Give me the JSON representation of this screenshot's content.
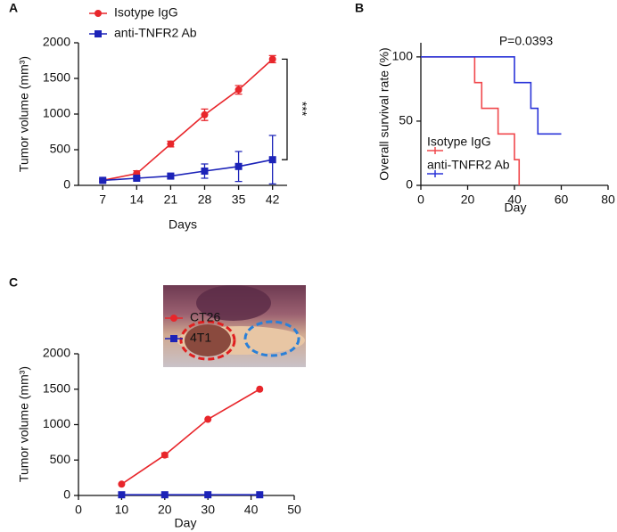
{
  "chart_data": [
    {
      "type": "line",
      "panel": "A",
      "xlabel": "Days",
      "ylabel": "Tumor volume (mm³)",
      "annotation": "***",
      "xlim": [
        2,
        45
      ],
      "xticks": [
        7,
        14,
        21,
        28,
        35,
        42
      ],
      "ylim": [
        0,
        2000
      ],
      "yticks": [
        0,
        500,
        1000,
        1500,
        2000
      ],
      "series": [
        {
          "name": "Isotype IgG",
          "color": "#e8262b",
          "marker": "circle",
          "x": [
            7,
            14,
            21,
            28,
            35,
            42
          ],
          "values": [
            70,
            165,
            580,
            990,
            1340,
            1770
          ],
          "errors": [
            20,
            40,
            40,
            80,
            60,
            50
          ]
        },
        {
          "name": "anti-TNFR2 Ab",
          "color": "#1c23b8",
          "marker": "square",
          "x": [
            7,
            14,
            21,
            28,
            35,
            42
          ],
          "values": [
            70,
            100,
            130,
            200,
            265,
            360
          ],
          "errors": [
            20,
            20,
            30,
            100,
            210,
            340
          ]
        }
      ]
    },
    {
      "type": "step",
      "panel": "B",
      "xlabel": "Day",
      "ylabel": "Overall survival rate (%)",
      "annotation": "P=0.0393",
      "xlim": [
        0,
        80
      ],
      "xticks": [
        0,
        20,
        40,
        60,
        80
      ],
      "ylim": [
        0,
        111
      ],
      "yticks": [
        0,
        50,
        100
      ],
      "series": [
        {
          "name": "Isotype IgG",
          "color": "#f0484c",
          "x": [
            0,
            23,
            26,
            33,
            40,
            42
          ],
          "values": [
            100,
            80,
            60,
            40,
            20,
            0
          ]
        },
        {
          "name": "anti-TNFR2 Ab",
          "color": "#2a34d8",
          "x": [
            0,
            40,
            47,
            50,
            60
          ],
          "values": [
            100,
            80,
            60,
            40,
            40
          ]
        }
      ]
    },
    {
      "type": "line",
      "panel": "C",
      "xlabel": "Day",
      "ylabel": "Tumor volume (mm³)",
      "xlim": [
        0,
        50
      ],
      "xticks": [
        0,
        10,
        20,
        30,
        40,
        50
      ],
      "ylim": [
        0,
        2000
      ],
      "yticks": [
        0,
        500,
        1000,
        1500,
        2000
      ],
      "series": [
        {
          "name": "CT26",
          "color": "#e8262b",
          "marker": "circle",
          "x": [
            10,
            20,
            30,
            42
          ],
          "values": [
            160,
            570,
            1075,
            1500
          ],
          "errors": [
            null,
            30,
            null,
            null
          ]
        },
        {
          "name": "4T1",
          "color": "#1c23b8",
          "marker": "square",
          "x": [
            10,
            20,
            30,
            42
          ],
          "values": [
            10,
            10,
            10,
            10
          ],
          "errors": [
            null,
            null,
            null,
            null
          ]
        }
      ]
    }
  ]
}
